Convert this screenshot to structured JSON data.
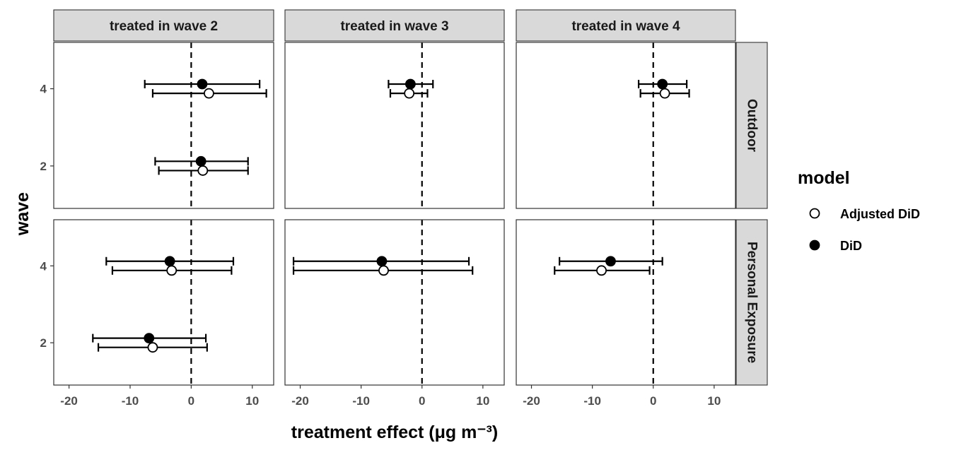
{
  "chart_data": {
    "type": "scatter",
    "subtype": "faceted coefficient plot with error bars",
    "facet_columns": [
      "treated in wave 2",
      "treated in wave 3",
      "treated in wave 4"
    ],
    "facet_rows": [
      "Outdoor",
      "Personal Exposure"
    ],
    "xlabel": "treatment effect (μg m⁻³)",
    "ylabel": "wave",
    "xlim": [
      -22.5,
      13.5
    ],
    "ylim": [
      0.9,
      5.2
    ],
    "x_ticks": [
      -20,
      -10,
      0,
      10
    ],
    "x_tick_labels": [
      "-20",
      "-10",
      "0",
      "10"
    ],
    "y_ticks": [
      2,
      4
    ],
    "y_tick_labels": [
      "2",
      "4"
    ],
    "reference_line_x": 0,
    "grid": false,
    "legend": {
      "title": "model",
      "position": "right",
      "entries": [
        {
          "label": "Adjusted DiD",
          "marker": "open-circle"
        },
        {
          "label": "DiD",
          "marker": "filled-circle"
        }
      ]
    },
    "series": [
      {
        "name": "DiD",
        "marker": "filled-circle",
        "points": [
          {
            "col": 0,
            "row": 0,
            "wave": 4,
            "estimate": 1.8,
            "lower": -7.6,
            "upper": 11.2
          },
          {
            "col": 0,
            "row": 0,
            "wave": 2,
            "estimate": 1.6,
            "lower": -5.9,
            "upper": 9.3
          },
          {
            "col": 1,
            "row": 0,
            "wave": 4,
            "estimate": -1.9,
            "lower": -5.5,
            "upper": 1.8
          },
          {
            "col": 2,
            "row": 0,
            "wave": 4,
            "estimate": 1.5,
            "lower": -2.4,
            "upper": 5.5
          },
          {
            "col": 0,
            "row": 1,
            "wave": 4,
            "estimate": -3.5,
            "lower": -13.9,
            "upper": 6.9
          },
          {
            "col": 0,
            "row": 1,
            "wave": 2,
            "estimate": -6.9,
            "lower": -16.1,
            "upper": 2.4
          },
          {
            "col": 1,
            "row": 1,
            "wave": 4,
            "estimate": -6.6,
            "lower": -21.1,
            "upper": 7.7
          },
          {
            "col": 2,
            "row": 1,
            "wave": 4,
            "estimate": -7.0,
            "lower": -15.4,
            "upper": 1.5
          }
        ]
      },
      {
        "name": "Adjusted DiD",
        "marker": "open-circle",
        "points": [
          {
            "col": 0,
            "row": 0,
            "wave": 4,
            "estimate": 2.9,
            "lower": -6.3,
            "upper": 12.3
          },
          {
            "col": 0,
            "row": 0,
            "wave": 2,
            "estimate": 1.9,
            "lower": -5.3,
            "upper": 9.3
          },
          {
            "col": 1,
            "row": 0,
            "wave": 4,
            "estimate": -2.1,
            "lower": -5.2,
            "upper": 0.9
          },
          {
            "col": 2,
            "row": 0,
            "wave": 4,
            "estimate": 1.9,
            "lower": -2.1,
            "upper": 5.9
          },
          {
            "col": 0,
            "row": 1,
            "wave": 4,
            "estimate": -3.2,
            "lower": -12.9,
            "upper": 6.6
          },
          {
            "col": 0,
            "row": 1,
            "wave": 2,
            "estimate": -6.3,
            "lower": -15.2,
            "upper": 2.6
          },
          {
            "col": 1,
            "row": 1,
            "wave": 4,
            "estimate": -6.3,
            "lower": -21.1,
            "upper": 8.3
          },
          {
            "col": 2,
            "row": 1,
            "wave": 4,
            "estimate": -8.5,
            "lower": -16.2,
            "upper": -0.6
          }
        ]
      }
    ]
  }
}
